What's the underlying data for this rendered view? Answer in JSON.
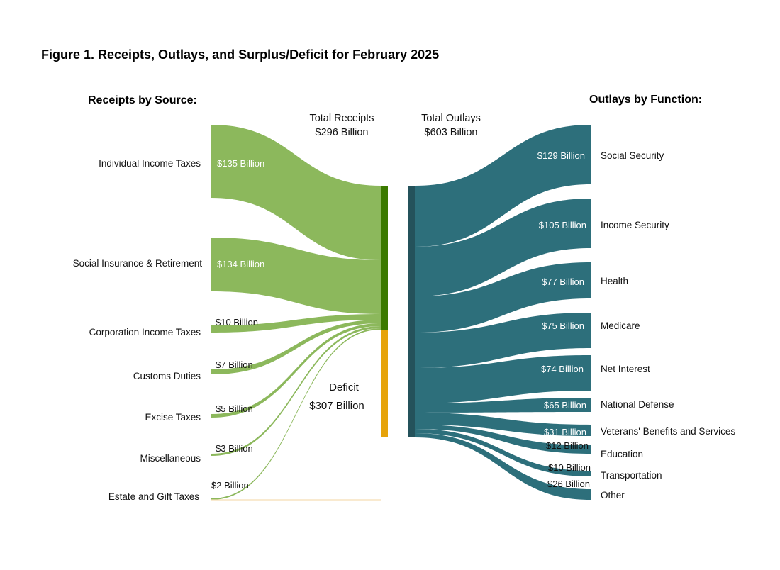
{
  "title": "Figure 1. Receipts, Outlays, and Surplus/Deficit for February 2025",
  "receipts_header": "Receipts by Source:",
  "outlays_header": "Outlays by Function:",
  "total_receipts": {
    "label": "Total Receipts",
    "value": "$296 Billion"
  },
  "total_outlays": {
    "label": "Total Outlays",
    "value": "$603 Billion"
  },
  "deficit": {
    "label": "Deficit",
    "value": "$307 Billion"
  },
  "colors": {
    "receipts": "#8cb85c",
    "receipts_bar": "#3b7a00",
    "deficit": "#e6a30a",
    "outlays": "#2d6f7b",
    "outlays_bar": "#24525b",
    "estate_line": "#f5deb3"
  },
  "receipts": [
    {
      "name": "Individual Income Taxes",
      "value_label": "$135 Billion"
    },
    {
      "name": "Social Insurance & Retirement",
      "value_label": "$134 Billion"
    },
    {
      "name": "Corporation Income Taxes",
      "value_label": "$10 Billion"
    },
    {
      "name": "Customs Duties",
      "value_label": "$7 Billion"
    },
    {
      "name": "Excise Taxes",
      "value_label": "$5 Billion"
    },
    {
      "name": "Miscellaneous",
      "value_label": "$3 Billion"
    },
    {
      "name": "Estate and Gift Taxes",
      "value_label": "$2 Billion"
    }
  ],
  "outlays": [
    {
      "name": "Social Security",
      "value_label": "$129 Billion"
    },
    {
      "name": "Income Security",
      "value_label": "$105 Billion"
    },
    {
      "name": "Health",
      "value_label": "$77 Billion"
    },
    {
      "name": "Medicare",
      "value_label": "$75 Billion"
    },
    {
      "name": "Net Interest",
      "value_label": "$74 Billion"
    },
    {
      "name": "National Defense",
      "value_label": "$65 Billion"
    },
    {
      "name": "Veterans' Benefits and Services",
      "value_label": "$31 Billion"
    },
    {
      "name": "Education",
      "value_label": "$12 Billion"
    },
    {
      "name": "Transportation",
      "value_label": "$10 Billion"
    },
    {
      "name": "Other",
      "value_label": "$26 Billion"
    }
  ]
}
